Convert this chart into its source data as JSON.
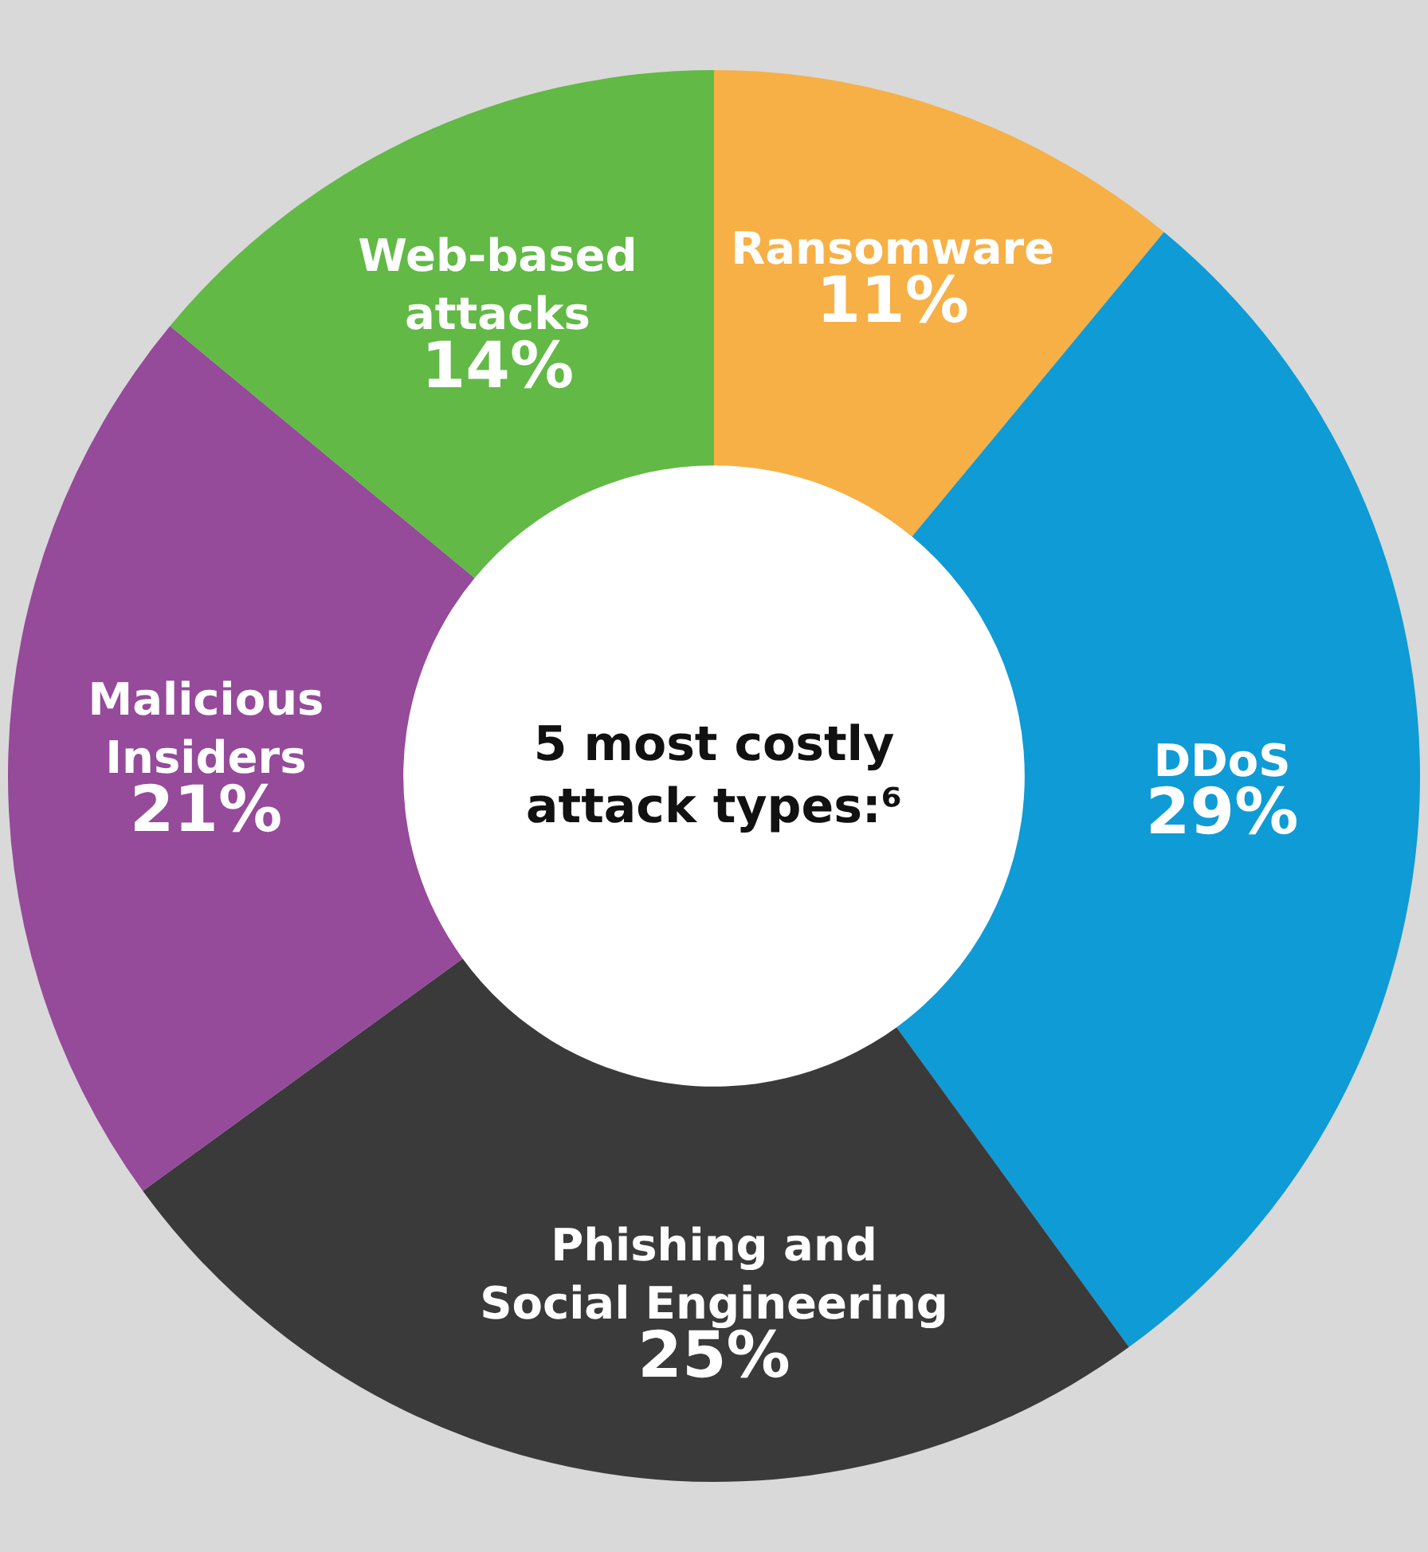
{
  "chart_data": {
    "type": "donut",
    "title": "5 most costly attack types:⁶",
    "categories": [
      "Ransomware",
      "DDoS",
      "Phishing and Social Engineering",
      "Malicious Insiders",
      "Web-based attacks"
    ],
    "values": [
      11,
      29,
      25,
      21,
      14
    ],
    "value_labels": [
      "11%",
      "29%",
      "25%",
      "21%",
      "14%"
    ],
    "colors": [
      "#f7b045",
      "#0f9bd5",
      "#3a3a3a",
      "#954a9a",
      "#62b946"
    ],
    "legend": false
  }
}
